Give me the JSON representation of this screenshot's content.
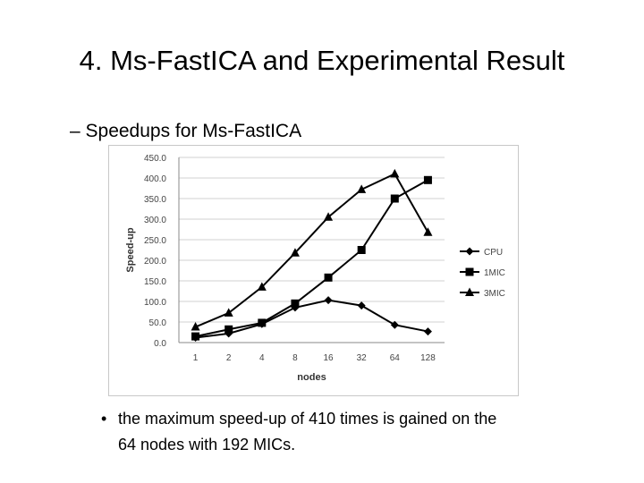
{
  "slide": {
    "title": "4.  Ms-FastICA and Experimental Result",
    "subheading": "– Speedups for Ms-FastICA",
    "bullet": {
      "marker": "•",
      "line1": "the maximum speed-up of 410 times is gained on the",
      "line2": "64 nodes with 192 MICs."
    }
  },
  "chart_data": {
    "type": "line",
    "title": "",
    "xlabel": "nodes",
    "ylabel": "Speed-up",
    "categories": [
      "1",
      "2",
      "4",
      "8",
      "16",
      "32",
      "64",
      "128"
    ],
    "ylim": [
      0,
      450
    ],
    "yticks": [
      "0.0",
      "50.0",
      "100.0",
      "150.0",
      "200.0",
      "250.0",
      "300.0",
      "350.0",
      "400.0",
      "450.0"
    ],
    "grid": true,
    "legend_position": "right",
    "series": [
      {
        "name": "CPU",
        "marker": "diamond",
        "values": [
          12,
          22,
          45,
          85,
          103,
          90,
          43,
          27
        ]
      },
      {
        "name": "1MIC",
        "marker": "square",
        "values": [
          15,
          32,
          48,
          95,
          158,
          225,
          350,
          395
        ]
      },
      {
        "name": "3MIC",
        "marker": "triangle",
        "values": [
          38,
          72,
          135,
          218,
          305,
          372,
          410,
          268
        ]
      }
    ]
  }
}
